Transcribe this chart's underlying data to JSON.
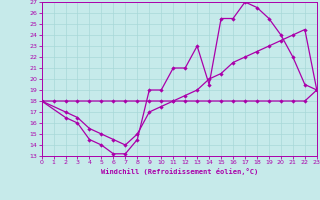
{
  "xlabel": "Windchill (Refroidissement éolien,°C)",
  "xlim": [
    0,
    23
  ],
  "ylim": [
    13,
    27
  ],
  "xticks": [
    0,
    1,
    2,
    3,
    4,
    5,
    6,
    7,
    8,
    9,
    10,
    11,
    12,
    13,
    14,
    15,
    16,
    17,
    18,
    19,
    20,
    21,
    22,
    23
  ],
  "yticks": [
    13,
    14,
    15,
    16,
    17,
    18,
    19,
    20,
    21,
    22,
    23,
    24,
    25,
    26,
    27
  ],
  "bg_color": "#c6eaea",
  "line_color": "#aa00aa",
  "grid_color": "#a8d8d8",
  "line1_x": [
    0,
    1,
    2,
    3,
    4,
    5,
    6,
    7,
    8,
    9,
    10,
    11,
    12,
    13,
    14,
    15,
    16,
    17,
    18,
    19,
    20,
    21,
    22,
    23
  ],
  "line1_y": [
    18,
    18,
    18,
    18,
    18,
    18,
    18,
    18,
    18,
    18,
    18,
    18,
    18,
    18,
    18,
    18,
    18,
    18,
    18,
    18,
    18,
    18,
    18,
    19
  ],
  "line2_x": [
    0,
    2,
    3,
    4,
    5,
    6,
    7,
    8,
    9,
    10,
    11,
    12,
    13,
    14,
    15,
    16,
    17,
    18,
    19,
    20,
    21,
    22,
    23
  ],
  "line2_y": [
    18,
    16.5,
    16,
    14.5,
    14,
    13.2,
    13.2,
    14.5,
    19,
    19,
    21,
    21,
    23,
    19.5,
    25.5,
    25.5,
    27,
    26.5,
    25.5,
    24,
    22,
    19.5,
    19
  ],
  "line3_x": [
    0,
    2,
    3,
    4,
    5,
    6,
    7,
    8,
    9,
    10,
    11,
    12,
    13,
    14,
    15,
    16,
    17,
    18,
    19,
    20,
    21,
    22,
    23
  ],
  "line3_y": [
    18,
    17,
    16.5,
    15.5,
    15,
    14.5,
    14,
    15,
    17,
    17.5,
    18,
    18.5,
    19,
    20,
    20.5,
    21.5,
    22,
    22.5,
    23,
    23.5,
    24,
    24.5,
    19
  ]
}
